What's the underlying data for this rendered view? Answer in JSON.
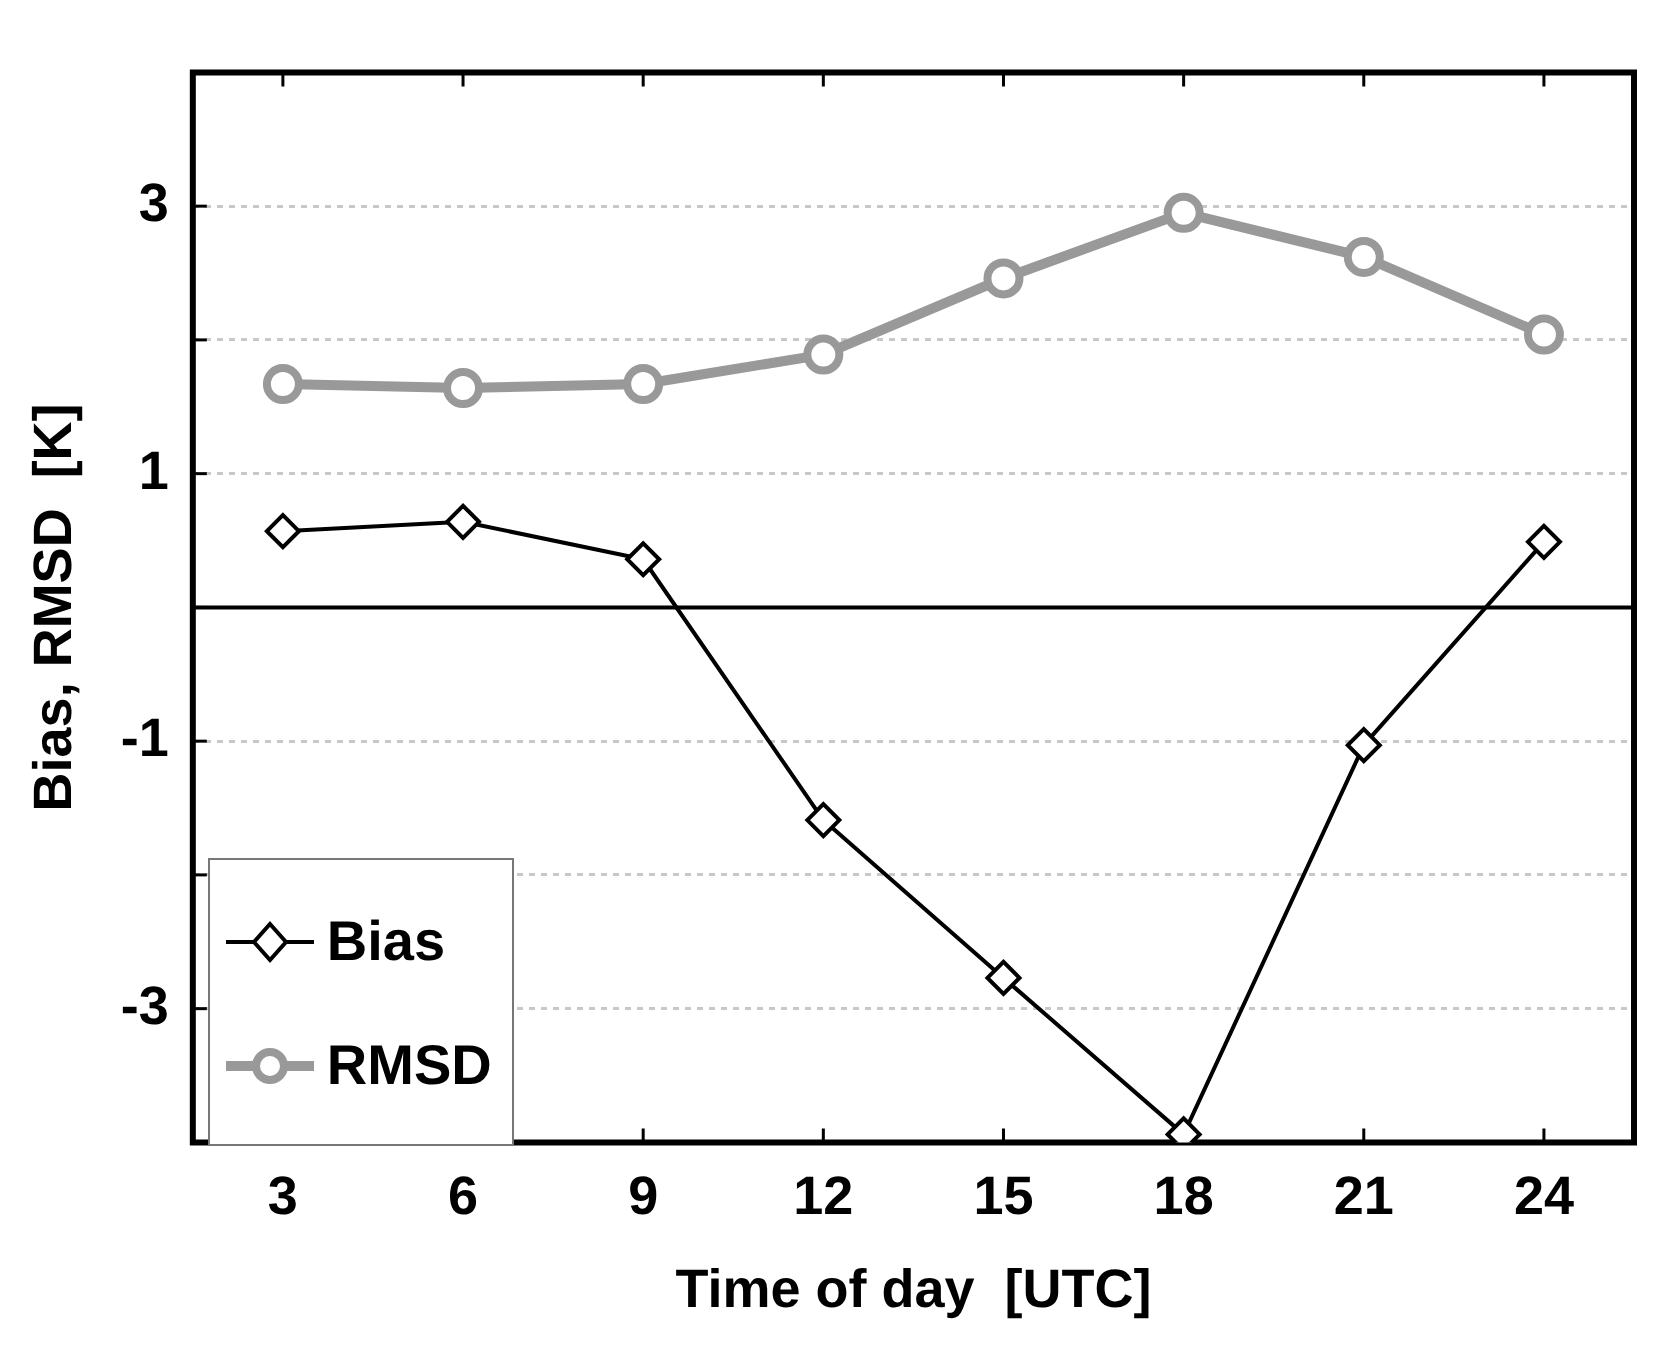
{
  "chart_data": {
    "type": "line",
    "xlabel": "Time of day  [UTC]",
    "ylabel": "Bias, RMSD  [K]",
    "x": [
      3,
      6,
      9,
      12,
      15,
      18,
      21,
      24
    ],
    "series": [
      {
        "name": "Bias",
        "color": "#000000",
        "marker": "diamond",
        "values": [
          0.57,
          0.64,
          0.36,
          -1.59,
          -2.77,
          -3.94,
          -1.03,
          0.49
        ]
      },
      {
        "name": "RMSD",
        "color": "#999999",
        "marker": "circle",
        "values": [
          1.67,
          1.64,
          1.67,
          1.89,
          2.46,
          2.95,
          2.62,
          2.04
        ]
      }
    ],
    "xlim": [
      1.5,
      25.5
    ],
    "xticks": [
      3,
      6,
      9,
      12,
      15,
      18,
      21,
      24
    ],
    "ylim": [
      -4,
      4
    ],
    "yticks": [
      -3,
      {
        "value": -2,
        "label": null
      },
      -1,
      {
        "value": 0,
        "label": null
      },
      1,
      {
        "value": 2,
        "label": null
      },
      3
    ],
    "ref_lines": [
      {
        "axis": "y",
        "value": 0,
        "color": "#000000"
      }
    ],
    "grid": "y",
    "legend": "bottom left",
    "line_style": "solid"
  }
}
